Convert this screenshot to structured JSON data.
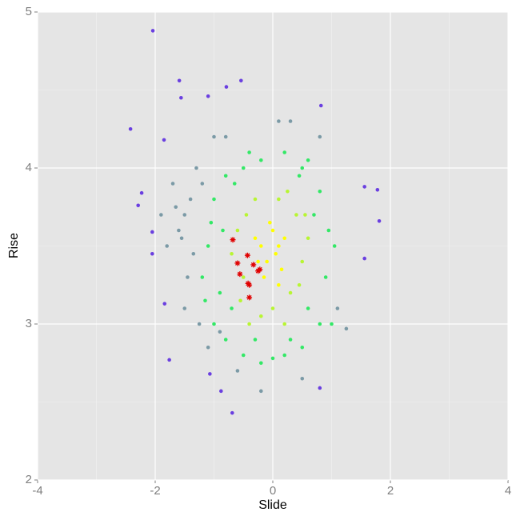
{
  "chart_data": {
    "type": "scatter",
    "x_label": "Slide",
    "y_label": "Rise",
    "xlim": [
      -4,
      4
    ],
    "ylim": [
      2,
      5
    ],
    "xticks": [
      -4,
      -2,
      0,
      2,
      4
    ],
    "yticks": [
      2,
      3,
      4,
      5
    ],
    "xminor": [
      -3,
      -1,
      1,
      3
    ],
    "yminor": [
      2.5,
      3.5,
      4.5
    ],
    "grid": true,
    "series": [
      {
        "color": "#6a3fe0",
        "marker": "dot",
        "x": [
          -2.04,
          -1.59,
          -2.42,
          -1.56,
          -0.79,
          -0.54,
          -1.1,
          -1.85,
          0.82,
          1.78,
          1.81,
          1.56,
          1.56,
          -0.69,
          -1.76,
          0.8,
          -2.23,
          -2.29,
          -2.05,
          -2.05,
          -1.84,
          -0.88,
          -1.07
        ],
        "values": [
          4.88,
          4.56,
          4.25,
          4.45,
          4.52,
          4.56,
          4.46,
          4.18,
          4.4,
          3.86,
          3.66,
          3.88,
          3.42,
          2.43,
          2.77,
          2.59,
          3.84,
          3.76,
          3.59,
          3.45,
          3.13,
          2.57,
          2.68
        ]
      },
      {
        "color": "#7b9aa6",
        "marker": "dot",
        "x": [
          -1.7,
          -1.5,
          -1.6,
          -1.4,
          -1.3,
          -1.8,
          -1.45,
          -1.55,
          -1.2,
          -1.65,
          -1.35,
          -1.9,
          -1.0,
          -0.8,
          0.1,
          0.3,
          0.8,
          1.1,
          1.25,
          -1.1,
          -0.6,
          -0.2,
          0.5,
          -1.25,
          -1.5,
          -0.9
        ],
        "values": [
          3.9,
          3.7,
          3.6,
          3.8,
          4.0,
          3.5,
          3.3,
          3.55,
          3.9,
          3.75,
          3.45,
          3.7,
          4.2,
          4.2,
          4.3,
          4.3,
          4.2,
          3.1,
          2.97,
          2.85,
          2.7,
          2.57,
          2.65,
          3.0,
          3.1,
          2.95
        ]
      },
      {
        "color": "#33e866",
        "marker": "dot",
        "x": [
          -1.0,
          -1.1,
          -0.9,
          -1.0,
          -0.8,
          -0.5,
          -0.2,
          0.2,
          0.5,
          0.8,
          0.9,
          0.95,
          0.8,
          0.5,
          0.2,
          -0.2,
          -0.5,
          -0.8,
          -1.2,
          -0.7,
          0.6,
          0.7,
          -0.3,
          0.0,
          -1.05,
          1.0,
          0.45,
          -0.65,
          0.3,
          -0.85,
          1.05,
          0.6,
          -0.4,
          -1.15
        ],
        "values": [
          3.8,
          3.5,
          3.2,
          3.0,
          2.9,
          2.8,
          2.75,
          2.8,
          2.85,
          3.0,
          3.3,
          3.6,
          3.85,
          4.0,
          4.1,
          4.05,
          4.0,
          3.95,
          3.3,
          3.1,
          3.1,
          3.7,
          2.9,
          2.78,
          3.65,
          3.0,
          3.95,
          3.9,
          2.9,
          3.6,
          3.5,
          4.05,
          4.1,
          3.15
        ]
      },
      {
        "color": "#b8f533",
        "marker": "dot",
        "x": [
          -0.6,
          -0.5,
          -0.4,
          0.0,
          0.3,
          0.5,
          0.4,
          0.1,
          -0.3,
          -0.7,
          0.6,
          -0.2,
          0.2,
          0.45,
          -0.55,
          0.25,
          -0.45,
          0.55
        ],
        "values": [
          3.6,
          3.3,
          3.0,
          3.1,
          3.2,
          3.4,
          3.7,
          3.8,
          3.8,
          3.45,
          3.55,
          3.05,
          3.0,
          3.25,
          3.15,
          3.85,
          3.7,
          3.7
        ]
      },
      {
        "color": "#ffff00",
        "marker": "dot",
        "x": [
          -0.2,
          -0.1,
          0.0,
          0.1,
          -0.15,
          0.15,
          -0.3,
          0.05,
          -0.05,
          0.2,
          -0.25,
          0.1
        ],
        "values": [
          3.5,
          3.4,
          3.6,
          3.5,
          3.3,
          3.35,
          3.55,
          3.45,
          3.65,
          3.55,
          3.4,
          3.25
        ]
      },
      {
        "color": "#e00000",
        "marker": "star",
        "x": [
          -0.68,
          -0.43,
          -0.6,
          -0.33,
          -0.22,
          -0.25,
          -0.56,
          -0.42,
          -0.4,
          -0.4
        ],
        "values": [
          3.54,
          3.44,
          3.39,
          3.38,
          3.35,
          3.34,
          3.32,
          3.26,
          3.25,
          3.17
        ]
      }
    ]
  }
}
